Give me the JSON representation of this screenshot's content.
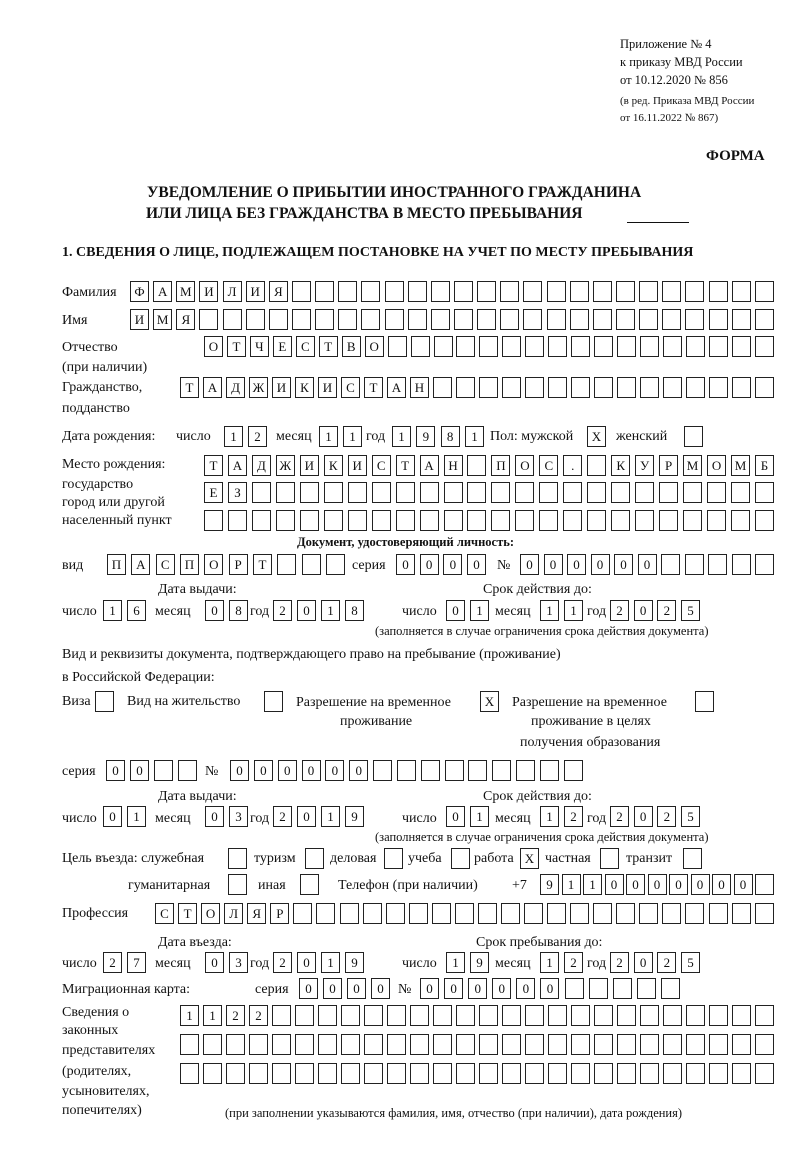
{
  "header": {
    "appendix": [
      "Приложение № 4",
      "к приказу МВД России",
      "от 10.12.2020 № 856"
    ],
    "edition": [
      "(в ред. Приказа МВД России",
      "от 16.11.2022 № 867)"
    ],
    "form_label": "ФОРМА",
    "title_line1": "УВЕДОМЛЕНИЕ О ПРИБЫТИИ ИНОСТРАННОГО ГРАЖДАНИНА",
    "title_line2": "ИЛИ ЛИЦА БЕЗ ГРАЖДАНСТВА В МЕСТО ПРЕБЫВАНИЯ",
    "section1": "1. СВЕДЕНИЯ О ЛИЦЕ, ПОДЛЕЖАЩЕМ ПОСТАНОВКЕ НА УЧЕТ ПО МЕСТУ ПРЕБЫВАНИЯ"
  },
  "labels": {
    "surname": "Фамилия",
    "name": "Имя",
    "patronymic": "Отчество",
    "patronymic_note": "(при наличии)",
    "citizenship": "Гражданство,",
    "citizenship2": "подданство",
    "birth_date": "Дата рождения:",
    "day": "число",
    "month": "месяц",
    "year": "год",
    "sex": "Пол: мужской",
    "female": "женский",
    "birth_place": "Место рождения:",
    "state": "государство",
    "city": "город или другой",
    "locality": "населенный пункт",
    "id_doc": "Документ, удостоверяющий личность:",
    "kind": "вид",
    "series": "серия",
    "number": "№",
    "issue_date": "Дата выдачи:",
    "valid_until": "Срок действия до:",
    "validity_note": "(заполняется в случае ограничения срока действия документа)",
    "stay_doc1": "Вид и реквизиты документа, подтверждающего право на пребывание (проживание)",
    "stay_doc2": "в Российской Федерации:",
    "visa": "Виза",
    "residence_permit": "Вид на жительство",
    "temp_permit1": "Разрешение на временное",
    "temp_permit2": "проживание",
    "edu_permit1": "Разрешение на временное",
    "edu_permit2": "проживание в целях",
    "edu_permit3": "получения образования",
    "purpose": "Цель въезда: служебная",
    "tourism": "туризм",
    "business": "деловая",
    "study": "учеба",
    "work": "работа",
    "private": "частная",
    "transit": "транзит",
    "humanitarian": "гуманитарная",
    "other": "иная",
    "phone": "Телефон (при наличии)",
    "phone_prefix": "+7",
    "profession": "Профессия",
    "entry_date": "Дата въезда:",
    "stay_until": "Срок пребывания до:",
    "migration_card": "Миграционная карта:",
    "reps": [
      "Сведения о",
      "законных",
      "представителях",
      "(родителях,",
      "усыновителях,",
      "попечителях)"
    ],
    "reps_note": "(при заполнении указываются фамилия, имя, отчество (при наличии), дата рождения)"
  },
  "person": {
    "surname": "ФАМИЛИЯ",
    "name": "ИМЯ",
    "patronymic": "ОТЧЕСТВО",
    "citizenship": "ТАДЖИКИСТАН",
    "birth_day": "12",
    "birth_month": "11",
    "birth_year": "1981",
    "male": "X",
    "female": "",
    "birth_place_1": "ТАДЖИКИСТАН ПОС. КУРМОМБ",
    "birth_place_2": "ЕЗ",
    "birth_place_3": "",
    "id_kind": "ПАСПОРТ",
    "id_series": "0000",
    "id_number": "000000",
    "id_issue_day": "16",
    "id_issue_month": "08",
    "id_issue_year": "2018",
    "id_valid_day": "01",
    "id_valid_month": "11",
    "id_valid_year": "2025",
    "visa": "",
    "residence_permit": "",
    "temp_permit": "X",
    "edu_permit": "",
    "stay_series": "00",
    "stay_number": "000000",
    "stay_issue_day": "01",
    "stay_issue_month": "03",
    "stay_issue_year": "2019",
    "stay_valid_day": "01",
    "stay_valid_month": "12",
    "stay_valid_year": "2025",
    "purpose_service": "",
    "purpose_tourism": "",
    "purpose_business": "",
    "purpose_study": "",
    "purpose_work": "X",
    "purpose_private": "",
    "purpose_transit": "",
    "purpose_humanitarian": "",
    "purpose_other": "",
    "phone": "9110000000",
    "profession": "СТОЛЯР",
    "entry_day": "27",
    "entry_month": "03",
    "entry_year": "2019",
    "stay_day": "19",
    "stay_month": "12",
    "stay_year": "2025",
    "mc_series": "0000",
    "mc_number": "000000",
    "reps_1": "1122",
    "reps_2": "",
    "reps_3": ""
  }
}
